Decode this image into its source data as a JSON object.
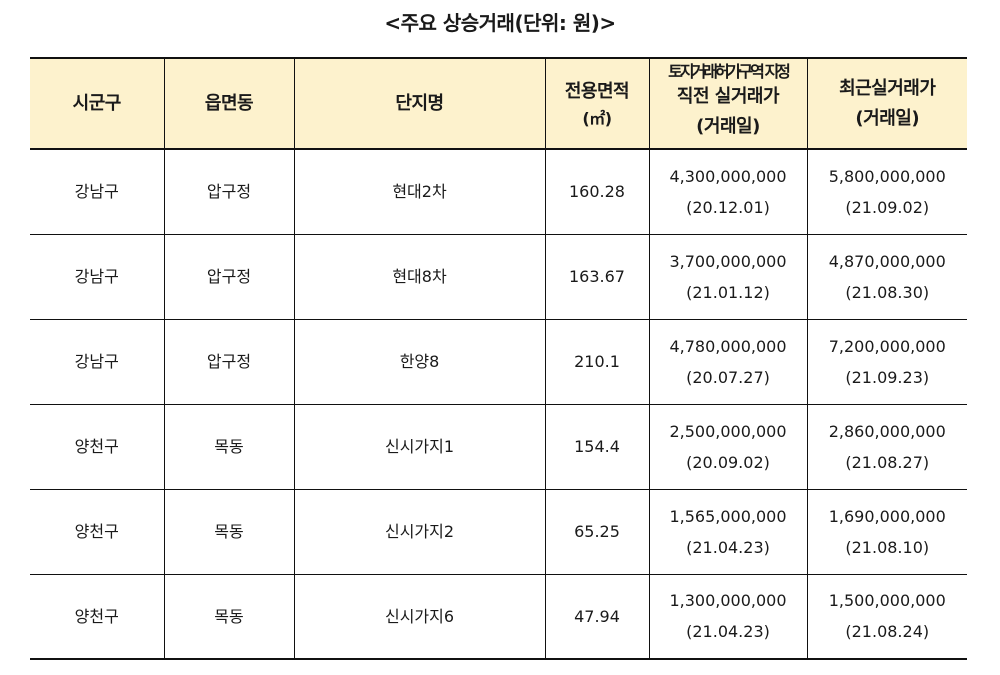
{
  "title": "<주요 상승거래(단위: 원)>",
  "table": {
    "headers": {
      "col1": "시군구",
      "col2": "읍면동",
      "col3": "단지명",
      "col4_line1": "전용면적",
      "col4_line2": "(㎡)",
      "col5_line1": "토지거래허가구역 지정",
      "col5_line2": "직전 실거래가",
      "col5_line3": "(거래일)",
      "col6_line1": "최근실거래가",
      "col6_line2": "(거래일)"
    },
    "rows": [
      {
        "sigungu": "강남구",
        "eup": "압구정",
        "danji": "현대2차",
        "area": "160.28",
        "prev_price": "4,300,000,000",
        "prev_date": "(20.12.01)",
        "recent_price": "5,800,000,000",
        "recent_date": "(21.09.02)"
      },
      {
        "sigungu": "강남구",
        "eup": "압구정",
        "danji": "현대8차",
        "area": "163.67",
        "prev_price": "3,700,000,000",
        "prev_date": "(21.01.12)",
        "recent_price": "4,870,000,000",
        "recent_date": "(21.08.30)"
      },
      {
        "sigungu": "강남구",
        "eup": "압구정",
        "danji": "한양8",
        "area": "210.1",
        "prev_price": "4,780,000,000",
        "prev_date": "(20.07.27)",
        "recent_price": "7,200,000,000",
        "recent_date": "(21.09.23)"
      },
      {
        "sigungu": "양천구",
        "eup": "목동",
        "danji": "신시가지1",
        "area": "154.4",
        "prev_price": "2,500,000,000",
        "prev_date": "(20.09.02)",
        "recent_price": "2,860,000,000",
        "recent_date": "(21.08.27)"
      },
      {
        "sigungu": "양천구",
        "eup": "목동",
        "danji": "신시가지2",
        "area": "65.25",
        "prev_price": "1,565,000,000",
        "prev_date": "(21.04.23)",
        "recent_price": "1,690,000,000",
        "recent_date": "(21.08.10)"
      },
      {
        "sigungu": "양천구",
        "eup": "목동",
        "danji": "신시가지6",
        "area": "47.94",
        "prev_price": "1,300,000,000",
        "prev_date": "(21.04.23)",
        "recent_price": "1,500,000,000",
        "recent_date": "(21.08.24)"
      }
    ]
  },
  "colors": {
    "header_bg": "#fdf2cd",
    "border": "#111111"
  }
}
